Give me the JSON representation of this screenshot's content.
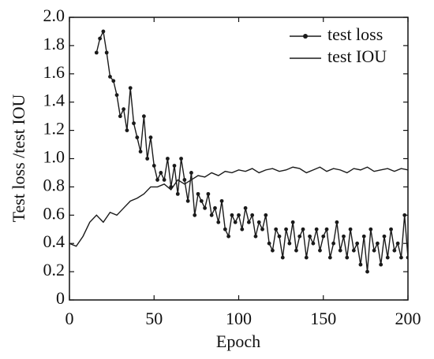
{
  "chart_data": {
    "type": "line",
    "xlabel": "Epoch",
    "ylabel": "Test loss /test IOU",
    "xlim": [
      0,
      200
    ],
    "xticks": [
      0,
      50,
      100,
      150,
      200
    ],
    "ylim": [
      0,
      2
    ],
    "yticks": [
      0,
      0.2,
      0.4,
      0.6,
      0.8,
      {
        "value": 1,
        "label": "1.0"
      },
      1.2,
      1.4,
      1.6,
      1.8,
      {
        "value": 2,
        "label": "2.0"
      }
    ],
    "legend": "upper right",
    "grid": false,
    "series": [
      {
        "name": "test loss",
        "color": "#1a1a1a",
        "marker": "circle",
        "x": [
          16,
          18,
          20,
          22,
          24,
          26,
          28,
          30,
          32,
          34,
          36,
          38,
          40,
          42,
          44,
          46,
          48,
          50,
          52,
          54,
          56,
          58,
          60,
          62,
          64,
          66,
          68,
          70,
          72,
          74,
          76,
          78,
          80,
          82,
          84,
          86,
          88,
          90,
          92,
          94,
          96,
          98,
          100,
          102,
          104,
          106,
          108,
          110,
          112,
          114,
          116,
          118,
          120,
          122,
          124,
          126,
          128,
          130,
          132,
          134,
          136,
          138,
          140,
          142,
          144,
          146,
          148,
          150,
          152,
          154,
          156,
          158,
          160,
          162,
          164,
          166,
          168,
          170,
          172,
          174,
          176,
          178,
          180,
          182,
          184,
          186,
          188,
          190,
          192,
          194,
          196,
          198,
          200
        ],
        "values": [
          1.75,
          1.85,
          1.9,
          1.75,
          1.58,
          1.55,
          1.45,
          1.3,
          1.35,
          1.2,
          1.5,
          1.25,
          1.15,
          1.05,
          1.3,
          1.0,
          1.15,
          0.95,
          0.85,
          0.9,
          0.85,
          1.0,
          0.8,
          0.95,
          0.75,
          1.0,
          0.85,
          0.7,
          0.9,
          0.6,
          0.75,
          0.7,
          0.65,
          0.75,
          0.6,
          0.65,
          0.55,
          0.7,
          0.5,
          0.45,
          0.6,
          0.55,
          0.6,
          0.5,
          0.65,
          0.55,
          0.6,
          0.45,
          0.55,
          0.5,
          0.6,
          0.4,
          0.35,
          0.5,
          0.45,
          0.3,
          0.5,
          0.4,
          0.55,
          0.35,
          0.45,
          0.5,
          0.3,
          0.45,
          0.4,
          0.5,
          0.35,
          0.45,
          0.5,
          0.3,
          0.4,
          0.55,
          0.35,
          0.45,
          0.3,
          0.5,
          0.35,
          0.4,
          0.25,
          0.45,
          0.2,
          0.5,
          0.35,
          0.4,
          0.25,
          0.45,
          0.3,
          0.5,
          0.35,
          0.4,
          0.3,
          0.6,
          0.3
        ]
      },
      {
        "name": "test IOU",
        "color": "#1a1a1a",
        "marker": "none",
        "x": [
          0,
          4,
          8,
          12,
          16,
          20,
          24,
          28,
          32,
          36,
          40,
          44,
          48,
          52,
          56,
          60,
          64,
          68,
          72,
          76,
          80,
          84,
          88,
          92,
          96,
          100,
          104,
          108,
          112,
          116,
          120,
          124,
          128,
          132,
          136,
          140,
          144,
          148,
          152,
          156,
          160,
          164,
          168,
          172,
          176,
          180,
          184,
          188,
          192,
          196,
          200
        ],
        "values": [
          0.4,
          0.38,
          0.45,
          0.55,
          0.6,
          0.55,
          0.62,
          0.6,
          0.65,
          0.7,
          0.72,
          0.75,
          0.8,
          0.8,
          0.82,
          0.78,
          0.85,
          0.82,
          0.85,
          0.88,
          0.87,
          0.9,
          0.88,
          0.91,
          0.9,
          0.92,
          0.91,
          0.93,
          0.9,
          0.92,
          0.93,
          0.91,
          0.92,
          0.94,
          0.93,
          0.9,
          0.92,
          0.94,
          0.91,
          0.93,
          0.92,
          0.9,
          0.93,
          0.92,
          0.94,
          0.91,
          0.92,
          0.93,
          0.91,
          0.93,
          0.92
        ]
      }
    ]
  }
}
